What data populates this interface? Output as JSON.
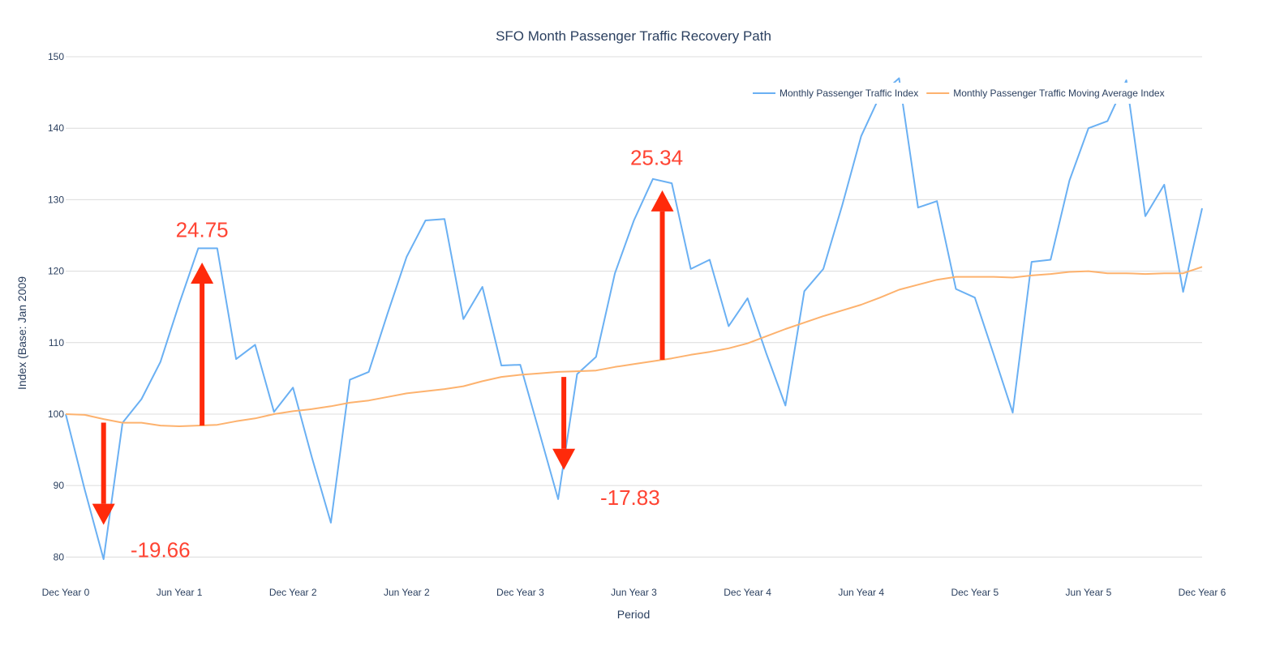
{
  "chart_data": {
    "type": "line",
    "title": "SFO Month Passenger Traffic Recovery Path",
    "xlabel": "Period",
    "ylabel": "Index (Base: Jan 2009",
    "ylim": [
      78,
      150
    ],
    "y_ticks": [
      80,
      90,
      100,
      110,
      120,
      130,
      140,
      150
    ],
    "x_tick_labels": [
      "Dec Year 0",
      "Jun Year 1",
      "Dec Year 2",
      "Jun Year 2",
      "Dec Year 3",
      "Jun Year 3",
      "Dec Year 4",
      "Jun Year 4",
      "Dec Year 5",
      "Jun Year 5",
      "Dec Year 6"
    ],
    "x_tick_positions": [
      0,
      6,
      12,
      18,
      24,
      30,
      36,
      42,
      48,
      54,
      60
    ],
    "xlim": [
      0,
      60
    ],
    "grid": true,
    "legend_position": "top-right",
    "series": [
      {
        "name": "Monthly Passenger Traffic Index",
        "color": "#6ab0f3",
        "values": [
          100,
          89.5,
          79.7,
          98.8,
          102.1,
          107.3,
          115.5,
          123.2,
          123.2,
          107.7,
          109.7,
          100.3,
          103.7,
          93.9,
          84.8,
          104.8,
          105.9,
          114.1,
          122.0,
          127.1,
          127.3,
          113.3,
          117.8,
          106.8,
          106.9,
          97.5,
          88.1,
          105.6,
          108.0,
          119.7,
          127.1,
          132.9,
          132.3,
          120.3,
          121.6,
          112.3,
          116.2,
          108.4,
          101.2,
          117.2,
          120.3,
          129.2,
          138.9,
          144.6,
          147.0,
          128.9,
          129.8,
          117.5,
          116.3,
          108.3,
          100.2,
          121.3,
          121.6,
          132.7,
          140.0,
          141.0,
          146.7,
          127.7,
          132.1,
          117.1,
          128.8
        ]
      },
      {
        "name": "Monthly Passenger Traffic Moving Average Index",
        "color": "#fdb26e",
        "values": [
          100,
          99.9,
          99.3,
          98.8,
          98.8,
          98.4,
          98.3,
          98.4,
          98.5,
          99.0,
          99.4,
          100.0,
          100.4,
          100.7,
          101.1,
          101.6,
          101.9,
          102.4,
          102.9,
          103.2,
          103.5,
          103.9,
          104.6,
          105.2,
          105.5,
          105.7,
          105.9,
          106.0,
          106.1,
          106.6,
          107.0,
          107.4,
          107.8,
          108.3,
          108.7,
          109.2,
          109.9,
          110.9,
          111.9,
          112.8,
          113.7,
          114.5,
          115.3,
          116.3,
          117.4,
          118.1,
          118.8,
          119.2,
          119.2,
          119.2,
          119.1,
          119.4,
          119.6,
          119.9,
          120.0,
          119.7,
          119.7,
          119.6,
          119.7,
          119.7,
          120.6
        ]
      }
    ],
    "annotations": [
      {
        "text": "-19.66",
        "color": "#ff4433",
        "arrow_direction": "down",
        "arrow_x": 2,
        "arrow_from": 98.8,
        "arrow_to": 84.5,
        "label_x": 5,
        "label_y": 81
      },
      {
        "text": "24.75",
        "color": "#ff4433",
        "arrow_direction": "up",
        "arrow_x": 7.2,
        "arrow_from": 98.4,
        "arrow_to": 121.2,
        "label_x": 7.2,
        "label_y": 125.8
      },
      {
        "text": "-17.83",
        "color": "#ff4433",
        "arrow_direction": "down",
        "arrow_x": 26.3,
        "arrow_from": 105.2,
        "arrow_to": 92.2,
        "label_x": 29.8,
        "label_y": 88.3
      },
      {
        "text": "25.34",
        "color": "#ff4433",
        "arrow_direction": "up",
        "arrow_x": 31.5,
        "arrow_from": 107.6,
        "arrow_to": 131.3,
        "label_x": 31.2,
        "label_y": 135.9
      }
    ]
  }
}
